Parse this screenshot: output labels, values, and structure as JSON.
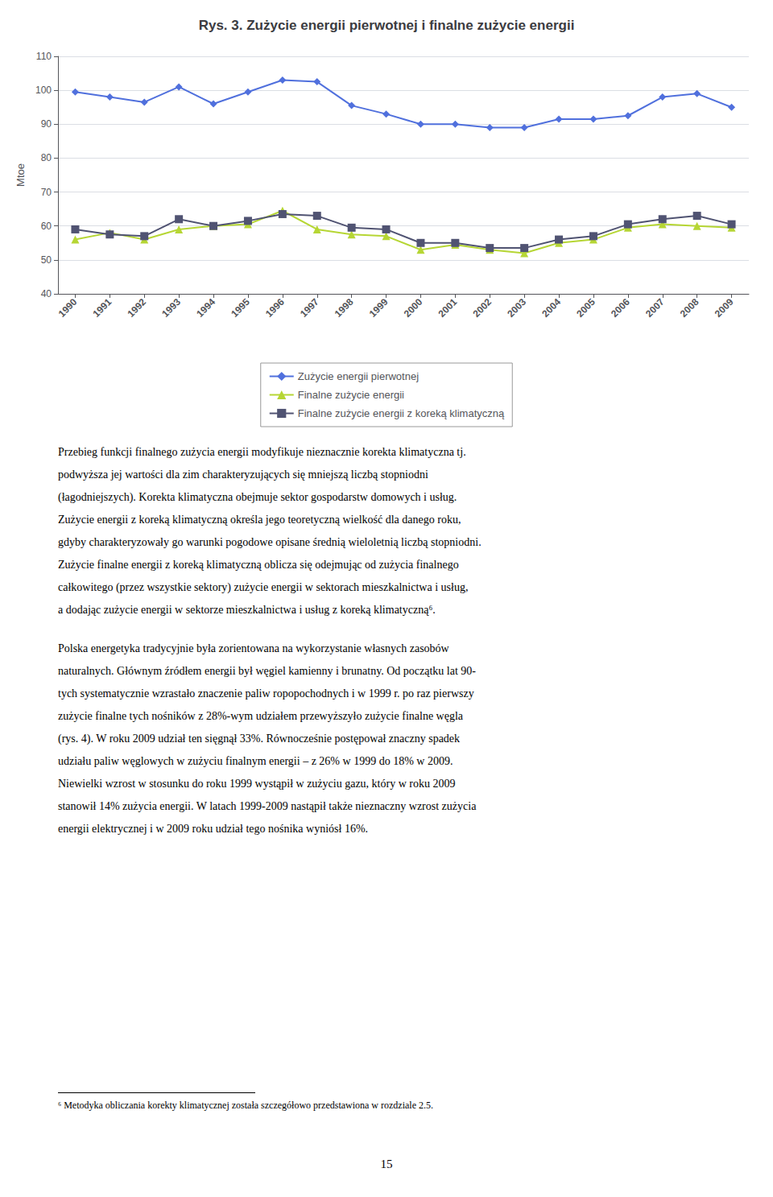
{
  "chart_data": {
    "type": "line",
    "title": "Rys. 3. Zużycie energii pierwotnej i finalne zużycie energii",
    "x": [
      1990,
      1991,
      1992,
      1993,
      1994,
      1995,
      1996,
      1997,
      1998,
      1999,
      2000,
      2001,
      2002,
      2003,
      2004,
      2005,
      2006,
      2007,
      2008,
      2009
    ],
    "xlim": [
      1989.5,
      2009.5
    ],
    "xticks": [
      1990,
      1991,
      1992,
      1993,
      1994,
      1995,
      1996,
      1997,
      1998,
      1999,
      2000,
      2001,
      2002,
      2003,
      2004,
      2005,
      2006,
      2007,
      2008,
      2009
    ],
    "ylim": [
      40,
      110
    ],
    "yticks": [
      40,
      50,
      60,
      70,
      80,
      90,
      100,
      110
    ],
    "ylabel": "Mtoe",
    "grid": true,
    "legend": "bottom",
    "series": [
      {
        "name": "Zużycie energii pierwotnej",
        "marker": "diamond",
        "values": [
          99.5,
          98.0,
          96.5,
          101.0,
          96.0,
          99.5,
          103.0,
          102.5,
          95.5,
          93.0,
          90.0,
          90.0,
          89.0,
          89.0,
          91.5,
          91.5,
          92.5,
          98.0,
          99.0,
          95.0
        ]
      },
      {
        "name": "Finalne zużycie energii",
        "marker": "triangle",
        "values": [
          56.0,
          58.0,
          56.0,
          59.0,
          60.0,
          60.5,
          64.5,
          59.0,
          57.5,
          57.0,
          53.0,
          54.5,
          53.0,
          52.0,
          55.0,
          56.0,
          59.5,
          60.5,
          60.0,
          59.5
        ]
      },
      {
        "name": "Finalne zużycie energii z koreką klimatyczną",
        "marker": "square",
        "values": [
          59.0,
          57.5,
          57.0,
          62.0,
          60.0,
          61.5,
          63.5,
          63.0,
          59.5,
          59.0,
          55.0,
          55.0,
          53.5,
          53.5,
          56.0,
          57.0,
          60.5,
          62.0,
          63.0,
          60.5
        ]
      }
    ]
  },
  "body_paragraphs": [
    [
      "Przebieg funkcji finalnego zużycia energii modyfikuje nieznacznie korekta klimatyczna tj.",
      "podwyższa jej wartości dla zim charakteryzujących się mniejszą liczbą stopniodni",
      "(łagodniejszych). Korekta klimatyczna obejmuje sektor gospodarstw domowych i usług.",
      "Zużycie energii z koreką klimatyczną określa jego teoretyczną wielkość dla danego roku,",
      "gdyby charakteryzowały go warunki pogodowe opisane średnią wieloletnią liczbą stopniodni.",
      "Zużycie finalne energii z koreką klimatyczną oblicza się odejmując od zużycia finalnego",
      "całkowitego (przez wszystkie sektory) zużycie energii w sektorach mieszkalnictwa i usług,",
      "a dodając zużycie energii w sektorze mieszkalnictwa i usług z koreką klimatyczną⁶."
    ],
    [
      "Polska energetyka tradycyjnie była zorientowana na wykorzystanie własnych zasobów",
      "naturalnych. Głównym źródłem energii był węgiel kamienny i brunatny. Od początku lat 90-",
      "tych systematycznie wzrastało znaczenie paliw ropopochodnych i w 1999 r. po raz pierwszy",
      "zużycie finalne tych nośników z 28%-wym udziałem przewyższyło zużycie finalne węgla",
      "(rys. 4). W roku 2009 udział ten sięgnął 33%. Równocześnie postępował znaczny spadek",
      "udziału paliw węglowych w zużyciu finalnym energii – z 26% w 1999 do 18% w 2009.",
      "Niewielki wzrost w stosunku do roku 1999 wystąpił w zużyciu gazu, który w roku 2009",
      "stanowił 14% zużycia energii. W latach 1999-2009 nastąpił także nieznaczny wzrost zużycia",
      "energii elektrycznej i w 2009 roku udział tego nośnika wyniósł 16%."
    ]
  ],
  "footnote": "⁶ Metodyka obliczania korekty klimatycznej została szczegółowo przedstawiona w rozdziale 2.5.",
  "page_number": "15"
}
